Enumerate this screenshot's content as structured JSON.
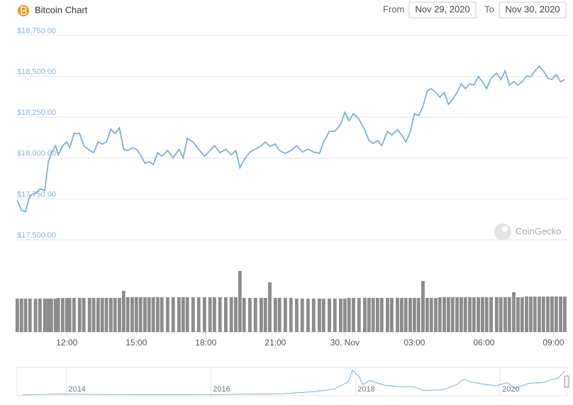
{
  "chart_data": {
    "type": "line",
    "title": "Bitcoin Chart",
    "range": {
      "from_label": "From",
      "from": "Nov 29, 2020",
      "to_label": "To",
      "to": "Nov 30, 2020"
    },
    "watermark": "CoinGecko",
    "color": "#7cb0e0",
    "grid": true,
    "xlim": [
      9.85,
      33.6
    ],
    "ylim": [
      17500,
      18750
    ],
    "xticks": [
      {
        "value": 12,
        "label": "12:00"
      },
      {
        "value": 15,
        "label": "15:00"
      },
      {
        "value": 18,
        "label": "18:00"
      },
      {
        "value": 21,
        "label": "21:00"
      },
      {
        "value": 24,
        "label": "30. Nov"
      },
      {
        "value": 27,
        "label": "03:00"
      },
      {
        "value": 30,
        "label": "06:00"
      },
      {
        "value": 33,
        "label": "09:00"
      }
    ],
    "yticks": [
      {
        "value": 17500,
        "label": "$17,500.00"
      },
      {
        "value": 17750,
        "label": "$17,750.00"
      },
      {
        "value": 18000,
        "label": "$18,000.00"
      },
      {
        "value": 18250,
        "label": "$18,250.00"
      },
      {
        "value": 18500,
        "label": "$18,500.00"
      },
      {
        "value": 18750,
        "label": "$18,750.00"
      }
    ],
    "x": [
      9.86,
      10.04,
      10.22,
      10.41,
      10.65,
      10.84,
      11.05,
      11.2,
      11.33,
      11.51,
      11.63,
      11.82,
      12.0,
      12.12,
      12.31,
      12.55,
      12.73,
      12.98,
      13.16,
      13.35,
      13.53,
      13.71,
      13.9,
      14.08,
      14.27,
      14.45,
      14.63,
      14.82,
      15.0,
      15.18,
      15.37,
      15.55,
      15.73,
      15.92,
      16.1,
      16.35,
      16.59,
      16.84,
      17.02,
      17.2,
      17.45,
      17.69,
      17.94,
      18.18,
      18.37,
      18.61,
      18.86,
      19.1,
      19.29,
      19.47,
      19.65,
      19.9,
      20.14,
      20.39,
      20.57,
      20.76,
      21.0,
      21.18,
      21.43,
      21.67,
      21.92,
      22.16,
      22.41,
      22.65,
      22.9,
      23.08,
      23.33,
      23.57,
      23.82,
      24.0,
      24.18,
      24.37,
      24.61,
      24.86,
      25.04,
      25.22,
      25.41,
      25.59,
      25.84,
      26.02,
      26.27,
      26.45,
      26.63,
      26.82,
      27.0,
      27.18,
      27.37,
      27.55,
      27.73,
      27.92,
      28.1,
      28.29,
      28.47,
      28.65,
      28.84,
      29.02,
      29.2,
      29.39,
      29.57,
      29.76,
      29.94,
      30.12,
      30.31,
      30.55,
      30.73,
      30.92,
      31.1,
      31.29,
      31.47,
      31.65,
      31.84,
      32.02,
      32.2,
      32.39,
      32.57,
      32.76,
      32.94,
      33.12,
      33.31,
      33.49
    ],
    "values": [
      17741,
      17680,
      17672,
      17772,
      17785,
      17811,
      17802,
      17976,
      18033,
      18076,
      18020,
      18076,
      18098,
      18063,
      18150,
      18150,
      18076,
      18046,
      18033,
      18098,
      18085,
      18098,
      18176,
      18150,
      18185,
      18054,
      18046,
      18063,
      18054,
      18020,
      17967,
      17976,
      17959,
      18033,
      18011,
      18046,
      18002,
      18054,
      18002,
      18120,
      18098,
      18054,
      18011,
      18046,
      18076,
      18033,
      18054,
      18020,
      18046,
      17941,
      17989,
      18037,
      18054,
      18076,
      18098,
      18072,
      18085,
      18046,
      18028,
      18046,
      18076,
      18037,
      18054,
      18037,
      18028,
      18098,
      18163,
      18163,
      18207,
      18280,
      18228,
      18272,
      18237,
      18172,
      18107,
      18089,
      18107,
      18076,
      18163,
      18141,
      18172,
      18141,
      18098,
      18159,
      18272,
      18259,
      18315,
      18411,
      18424,
      18402,
      18372,
      18402,
      18328,
      18359,
      18402,
      18454,
      18424,
      18454,
      18446,
      18498,
      18467,
      18424,
      18489,
      18520,
      18480,
      18533,
      18446,
      18467,
      18446,
      18467,
      18502,
      18498,
      18533,
      18563,
      18533,
      18489,
      18480,
      18511,
      18467,
      18480
    ],
    "volume": {
      "color": "#8c8c8c",
      "values": [
        47,
        47,
        47,
        47,
        47,
        47,
        47,
        47,
        47,
        47,
        48,
        48,
        48,
        48,
        48,
        48,
        48,
        48,
        48,
        48,
        48,
        48,
        48,
        48,
        48,
        58,
        49,
        49,
        49,
        49,
        49,
        49,
        49,
        49,
        49,
        49,
        49,
        49,
        49,
        49,
        49,
        49,
        49,
        49,
        49,
        49,
        49,
        49,
        49,
        86,
        48,
        48,
        48,
        48,
        48,
        70,
        48,
        48,
        48,
        48,
        47,
        47,
        47,
        47,
        47,
        47,
        47,
        47,
        47,
        47,
        48,
        48,
        48,
        48,
        48,
        48,
        48,
        48,
        48,
        48,
        48,
        48,
        48,
        48,
        48,
        48,
        72,
        48,
        48,
        48,
        49,
        49,
        49,
        49,
        49,
        49,
        49,
        49,
        49,
        49,
        49,
        49,
        49,
        49,
        49,
        49,
        49,
        56,
        49,
        49,
        50,
        50,
        50,
        50,
        50,
        50,
        50,
        50,
        50,
        50
      ]
    },
    "navigator": {
      "xlim": [
        2013.32,
        2020.93
      ],
      "ylim": [
        0,
        20000
      ],
      "xticks": [
        2014,
        2016,
        2018,
        2020
      ],
      "x": [
        2013.4,
        2013.9,
        2014.2,
        2014.6,
        2015.0,
        2015.5,
        2016.0,
        2016.5,
        2017.0,
        2017.4,
        2017.7,
        2017.9,
        2017.96,
        2018.05,
        2018.1,
        2018.2,
        2018.4,
        2018.6,
        2018.8,
        2018.95,
        2019.2,
        2019.4,
        2019.5,
        2019.6,
        2019.8,
        2019.95,
        2020.1,
        2020.2,
        2020.4,
        2020.6,
        2020.7,
        2020.8,
        2020.9
      ],
      "values": [
        100,
        800,
        600,
        500,
        250,
        250,
        400,
        650,
        1000,
        2500,
        4500,
        10000,
        19000,
        14000,
        8000,
        11000,
        7500,
        6500,
        6400,
        3500,
        3900,
        8000,
        12000,
        10000,
        8000,
        7200,
        9500,
        5000,
        9000,
        9500,
        11500,
        13000,
        18500
      ]
    }
  }
}
